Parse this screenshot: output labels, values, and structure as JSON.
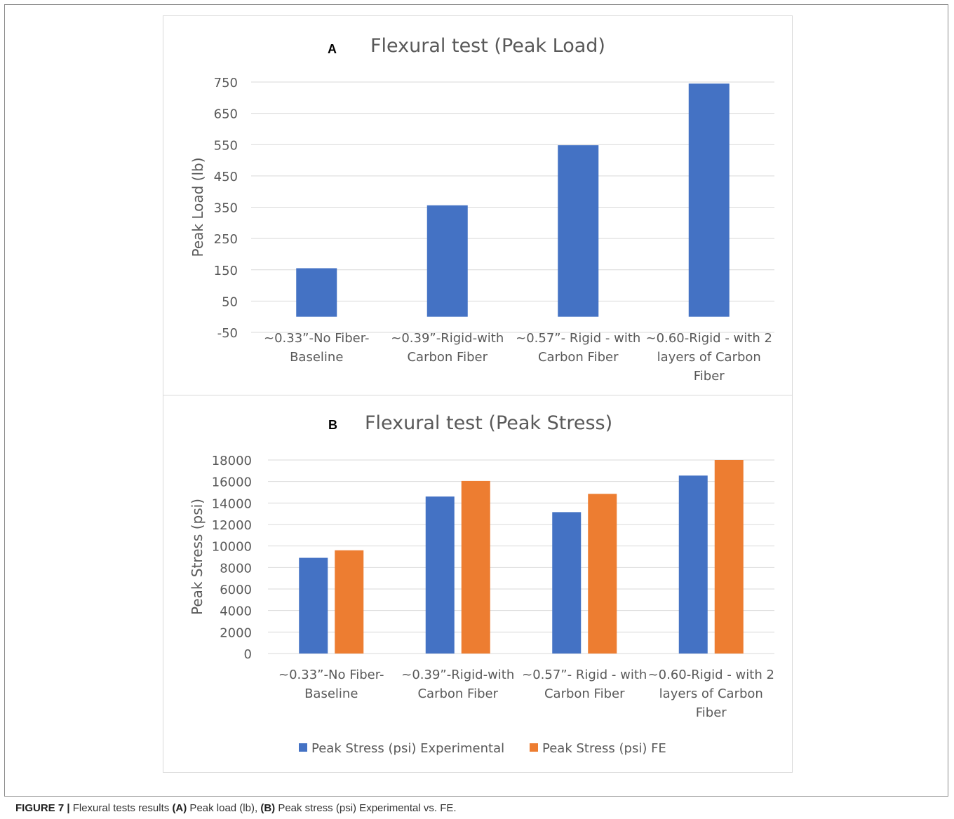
{
  "chart_data": [
    {
      "type": "bar",
      "panel_label": "A",
      "title": "Flexural test (Peak Load)",
      "ylabel": "Peak Load (lb)",
      "xlabel": "",
      "ylim": [
        -50,
        750
      ],
      "yticks": [
        750,
        650,
        550,
        450,
        350,
        250,
        150,
        50,
        -50
      ],
      "grid": true,
      "categories": [
        [
          "~0.33”-No Fiber-",
          "Baseline"
        ],
        [
          "~0.39”-Rigid-with",
          "Carbon Fiber"
        ],
        [
          "~0.57”- Rigid - with",
          "Carbon Fiber"
        ],
        [
          "~0.60-Rigid - with 2",
          "layers of Carbon",
          "Fiber"
        ]
      ],
      "series": [
        {
          "values": [
            155,
            356,
            548,
            745
          ],
          "color": "#4472c4"
        }
      ]
    },
    {
      "type": "bar",
      "panel_label": "B",
      "title": "Flexural test (Peak Stress)",
      "ylabel": "Peak Stress (psi)",
      "xlabel": "",
      "ylim": [
        0,
        18000
      ],
      "yticks": [
        18000,
        16000,
        14000,
        12000,
        10000,
        8000,
        6000,
        4000,
        2000,
        0
      ],
      "grid": true,
      "legend_position": "bottom",
      "categories": [
        [
          "~0.33”-No Fiber-",
          "Baseline"
        ],
        [
          "~0.39”-Rigid-with",
          "Carbon Fiber"
        ],
        [
          "~0.57”- Rigid - with",
          "Carbon Fiber"
        ],
        [
          "~0.60-Rigid - with 2",
          "layers of Carbon",
          "Fiber"
        ]
      ],
      "series": [
        {
          "name": "Peak Stress (psi) Experimental",
          "values": [
            8900,
            14600,
            13150,
            16550
          ],
          "color": "#4472c4"
        },
        {
          "name": "Peak Stress (psi) FE",
          "values": [
            9600,
            16050,
            14850,
            18000
          ],
          "color": "#ed7d31"
        }
      ]
    }
  ],
  "caption": {
    "prefix": "FIGURE 7 |",
    "t1": " Flexural tests results ",
    "a": "(A)",
    "t2": " Peak load (lb), ",
    "b": "(B)",
    "t3": " Peak stress (psi) Experimental vs. FE."
  }
}
